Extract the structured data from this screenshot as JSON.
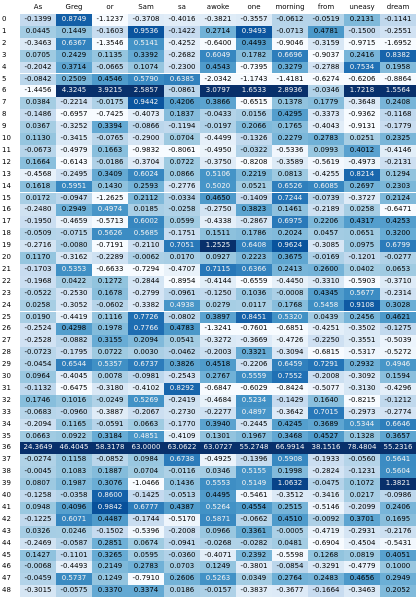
{
  "table": {
    "columns": [
      "As",
      "Greg",
      "or",
      "Sam",
      "sa",
      "awoke",
      "one",
      "morning",
      "from",
      "uneasy",
      "dream"
    ],
    "rows": [
      {
        "index": "0",
        "cells": [
          "-0.1399",
          "0.8749",
          "-1.1237",
          "-0.3708",
          "-0.4016",
          "-0.3821",
          "-0.3557",
          "-0.0612",
          "-0.0519",
          "0.2131",
          "-0.1141"
        ]
      },
      {
        "index": "1",
        "cells": [
          "0.0445",
          "0.1449",
          "-0.1603",
          "0.9536",
          "-0.1422",
          "0.2714",
          "0.9493",
          "-0.0713",
          "0.4781",
          "-0.1500",
          "-0.2551"
        ]
      },
      {
        "index": "2",
        "cells": [
          "-0.3463",
          "0.6367",
          "-1.3546",
          "0.5141",
          "-0.4252",
          "-0.6400",
          "0.4493",
          "-0.9046",
          "-0.3159",
          "-0.9715",
          "-1.6952"
        ]
      },
      {
        "index": "3",
        "cells": [
          "0.0705",
          "0.2429",
          "0.1135",
          "0.3392",
          "-0.2682",
          "0.6049",
          "0.1782",
          "0.6696",
          "-0.9037",
          "0.2416",
          "0.8382"
        ]
      },
      {
        "index": "4",
        "cells": [
          "-0.2042",
          "0.3714",
          "-0.0665",
          "0.1074",
          "-0.2300",
          "0.4543",
          "-0.7395",
          "0.3279",
          "-0.2788",
          "0.7534",
          "0.1958"
        ]
      },
      {
        "index": "5",
        "cells": [
          "-0.0842",
          "0.2509",
          "0.4546",
          "0.5790",
          "0.6385",
          "-2.0342",
          "-1.1743",
          "-1.4181",
          "-0.6274",
          "-0.6206",
          "-0.8864"
        ]
      },
      {
        "index": "6",
        "cells": [
          "-1.4456",
          "4.3245",
          "3.9215",
          "2.5857",
          "-0.0861",
          "3.0797",
          "1.6533",
          "2.8936",
          "-0.0346",
          "1.7218",
          "1.5564"
        ]
      },
      {
        "index": "7",
        "cells": [
          "0.0384",
          "-0.2214",
          "-0.0175",
          "0.9442",
          "0.4206",
          "0.3866",
          "-0.6515",
          "0.1378",
          "0.1779",
          "-0.3648",
          "0.2408"
        ]
      },
      {
        "index": "8",
        "cells": [
          "-0.1486",
          "-0.6957",
          "-0.7425",
          "-0.4073",
          "0.1837",
          "-0.0433",
          "0.0156",
          "0.4295",
          "-0.3373",
          "-0.9362",
          "-0.1168"
        ]
      },
      {
        "index": "9",
        "cells": [
          "0.0367",
          "-0.3252",
          "0.3394",
          "-0.0866",
          "-0.1194",
          "-0.0197",
          "0.2066",
          "0.1765",
          "-0.4043",
          "-0.9131",
          "-0.1779"
        ]
      },
      {
        "index": "10",
        "cells": [
          "0.1130",
          "-0.3415",
          "-0.0765",
          "-0.2900",
          "0.0704",
          "-0.4499",
          "-0.1326",
          "0.2279",
          "0.2783",
          "0.0251",
          "0.2325"
        ]
      },
      {
        "index": "11",
        "cells": [
          "-0.0673",
          "-0.4979",
          "0.1663",
          "-0.9832",
          "-0.8061",
          "-0.4950",
          "-0.0322",
          "-0.5336",
          "0.0993",
          "0.4012",
          "-0.4146"
        ]
      },
      {
        "index": "12",
        "cells": [
          "0.1664",
          "-0.6143",
          "-0.0186",
          "-0.3704",
          "0.0722",
          "-0.3750",
          "-0.8208",
          "-0.3589",
          "-0.5619",
          "-0.4973",
          "-0.2131"
        ]
      },
      {
        "index": "13",
        "cells": [
          "-0.4568",
          "-0.2495",
          "0.3409",
          "0.6024",
          "0.0866",
          "0.5106",
          "0.2219",
          "0.0813",
          "-0.4255",
          "0.8214",
          "0.1294"
        ]
      },
      {
        "index": "14",
        "cells": [
          "0.1618",
          "0.5951",
          "0.1430",
          "0.2593",
          "-0.2776",
          "0.5020",
          "0.0521",
          "0.6526",
          "0.6085",
          "0.2697",
          "0.2303"
        ]
      },
      {
        "index": "15",
        "cells": [
          "0.0172",
          "-0.0947",
          "-1.2625",
          "0.2112",
          "-0.0334",
          "0.4650",
          "-0.1409",
          "0.7244",
          "-0.0739",
          "-0.3727",
          "0.2124"
        ]
      },
      {
        "index": "16",
        "cells": [
          "-0.2480",
          "0.2949",
          "0.4974",
          "0.0185",
          "-0.0258",
          "-0.2750",
          "0.3823",
          "0.1461",
          "-0.2189",
          "0.0258",
          "-0.6471"
        ]
      },
      {
        "index": "17",
        "cells": [
          "-0.1950",
          "-0.4659",
          "-0.5713",
          "0.6002",
          "0.0599",
          "-0.4338",
          "-0.2867",
          "0.6975",
          "0.2206",
          "0.4317",
          "0.4253"
        ]
      },
      {
        "index": "18",
        "cells": [
          "-0.0509",
          "-0.0715",
          "0.5626",
          "0.5685",
          "-0.1751",
          "0.1511",
          "0.1786",
          "0.2024",
          "0.0457",
          "0.0651",
          "0.3200"
        ]
      },
      {
        "index": "19",
        "cells": [
          "-0.2716",
          "-0.0080",
          "-0.7191",
          "-0.2110",
          "0.7051",
          "1.2525",
          "0.6408",
          "0.9624",
          "-0.3085",
          "0.0975",
          "0.6799"
        ]
      },
      {
        "index": "20",
        "cells": [
          "0.1170",
          "-0.3162",
          "-0.2289",
          "-0.0062",
          "0.0170",
          "0.0927",
          "0.2223",
          "0.3675",
          "-0.0169",
          "-0.1201",
          "-0.0277"
        ]
      },
      {
        "index": "21",
        "cells": [
          "-0.1703",
          "0.5353",
          "-0.6633",
          "-0.7294",
          "-0.4707",
          "0.7115",
          "0.6366",
          "0.2413",
          "0.2600",
          "0.0402",
          "0.0653"
        ]
      },
      {
        "index": "22",
        "cells": [
          "-0.1968",
          "0.0422",
          "0.1272",
          "-0.2844",
          "-0.8954",
          "-0.4144",
          "-0.6559",
          "-0.4450",
          "-0.3310",
          "-0.5903",
          "-0.3710"
        ]
      },
      {
        "index": "23",
        "cells": [
          "-0.0522",
          "-0.2530",
          "0.1678",
          "-0.2799",
          "-0.0961",
          "-0.1250",
          "0.1036",
          "-0.0008",
          "0.4345",
          "0.5677",
          "-0.2314"
        ]
      },
      {
        "index": "24",
        "cells": [
          "0.0258",
          "-0.3052",
          "-0.0602",
          "-0.3382",
          "0.4938",
          "0.0279",
          "0.0117",
          "0.1768",
          "0.5458",
          "0.9108",
          "0.3028"
        ]
      },
      {
        "index": "25",
        "cells": [
          "0.0190",
          "-0.4419",
          "0.1116",
          "0.7726",
          "-0.0802",
          "0.3897",
          "0.8451",
          "0.5320",
          "0.0439",
          "0.2456",
          "0.4621"
        ]
      },
      {
        "index": "26",
        "cells": [
          "-0.2524",
          "0.4298",
          "0.1978",
          "0.7766",
          "0.4783",
          "-1.3241",
          "-0.7601",
          "-0.6851",
          "-0.4251",
          "-0.3502",
          "-0.1275"
        ]
      },
      {
        "index": "27",
        "cells": [
          "-0.2528",
          "-0.0882",
          "0.3155",
          "0.2094",
          "0.0541",
          "-0.3272",
          "-0.3669",
          "-0.4726",
          "-0.2250",
          "-0.3551",
          "-0.5039"
        ]
      },
      {
        "index": "28",
        "cells": [
          "-0.0723",
          "-0.1795",
          "0.0722",
          "0.0030",
          "-0.0462",
          "-0.2003",
          "0.3321",
          "-0.3094",
          "-0.6815",
          "-0.5317",
          "-0.5272"
        ]
      },
      {
        "index": "29",
        "cells": [
          "-0.0454",
          "0.6544",
          "0.5357",
          "0.6737",
          "0.3826",
          "0.4518",
          "-0.2206",
          "0.6459",
          "0.7291",
          "0.2932",
          "0.4946"
        ]
      },
      {
        "index": "30",
        "cells": [
          "0.0964",
          "-0.4045",
          "0.0078",
          "-0.0981",
          "-0.2543",
          "0.2767",
          "0.5559",
          "0.7552",
          "-0.2008",
          "-0.3092",
          "0.1594"
        ]
      },
      {
        "index": "31",
        "cells": [
          "-0.1132",
          "-0.6475",
          "-0.3180",
          "-0.4102",
          "0.8292",
          "-0.6847",
          "-0.6029",
          "-0.8424",
          "-0.5077",
          "-0.3130",
          "-0.4296"
        ]
      },
      {
        "index": "32",
        "cells": [
          "0.1746",
          "0.1016",
          "-0.0249",
          "0.5269",
          "-0.2419",
          "-0.4684",
          "0.5234",
          "-0.1429",
          "0.1640",
          "-0.8215",
          "-0.1212"
        ]
      },
      {
        "index": "33",
        "cells": [
          "-0.0683",
          "-0.0960",
          "-0.3887",
          "-0.2067",
          "-0.2730",
          "-0.2277",
          "0.4897",
          "-0.3642",
          "0.7015",
          "-0.2973",
          "-0.2774"
        ]
      },
      {
        "index": "34",
        "cells": [
          "-0.2094",
          "0.1165",
          "-0.0591",
          "0.0663",
          "-0.1770",
          "0.3940",
          "-0.2445",
          "0.4245",
          "0.3689",
          "0.5344",
          "0.6646"
        ]
      },
      {
        "index": "35",
        "cells": [
          "0.0663",
          "0.0922",
          "0.3184",
          "0.4851",
          "-0.4109",
          "0.1301",
          "0.1967",
          "0.3468",
          "0.4527",
          "0.1328",
          "0.3657"
        ]
      },
      {
        "index": "36",
        "cells": [
          "24.3649",
          "46.4045",
          "58.3178",
          "63.0000",
          "63.0622",
          "63.0727",
          "55.2748",
          "66.9914",
          "38.1516",
          "78.4804",
          "55.2316"
        ]
      },
      {
        "index": "37",
        "cells": [
          "-0.0274",
          "0.1158",
          "-0.0852",
          "0.0984",
          "0.6738",
          "-0.4925",
          "-0.1396",
          "0.5908",
          "-0.1933",
          "-0.0560",
          "0.5641"
        ]
      },
      {
        "index": "38",
        "cells": [
          "-0.0045",
          "0.1083",
          "0.1887",
          "0.0704",
          "-0.0116",
          "0.0346",
          "0.5155",
          "0.1998",
          "-0.2824",
          "-0.1231",
          "0.5604"
        ]
      },
      {
        "index": "39",
        "cells": [
          "0.0807",
          "0.1987",
          "0.3076",
          "-1.0466",
          "0.1436",
          "0.5553",
          "0.5149",
          "1.0632",
          "-0.0475",
          "0.1072",
          "1.3821"
        ]
      },
      {
        "index": "40",
        "cells": [
          "-0.1258",
          "-0.0358",
          "0.8600",
          "-0.1425",
          "-0.0513",
          "0.4495",
          "-0.5461",
          "-0.3512",
          "-0.3416",
          "0.0217",
          "-0.0986"
        ]
      },
      {
        "index": "41",
        "cells": [
          "0.0948",
          "0.4096",
          "0.9842",
          "0.6777",
          "0.4387",
          "0.5264",
          "0.4554",
          "0.2515",
          "-0.5146",
          "-0.2099",
          "0.2406"
        ]
      },
      {
        "index": "42",
        "cells": [
          "-0.1225",
          "0.6071",
          "0.4487",
          "-0.1744",
          "-0.5170",
          "0.5871",
          "-0.0662",
          "0.4510",
          "-0.0092",
          "0.3701",
          "0.1695"
        ]
      },
      {
        "index": "43",
        "cells": [
          "0.0326",
          "0.0246",
          "-0.1502",
          "-0.5396",
          "-0.2008",
          "0.0966",
          "0.3361",
          "-0.0005",
          "-0.4719",
          "-0.2931",
          "-0.2176"
        ]
      },
      {
        "index": "44",
        "cells": [
          "-0.2469",
          "-0.0587",
          "0.2851",
          "0.0674",
          "-0.0941",
          "-0.0268",
          "-0.0282",
          "0.0481",
          "-0.6904",
          "-0.4504",
          "-0.5431"
        ]
      },
      {
        "index": "45",
        "cells": [
          "0.1427",
          "-0.1101",
          "0.3265",
          "0.0595",
          "-0.0360",
          "-0.4071",
          "0.2392",
          "-0.5598",
          "0.1268",
          "0.0819",
          "0.4051"
        ]
      },
      {
        "index": "46",
        "cells": [
          "-0.0068",
          "-0.4493",
          "0.2149",
          "0.2783",
          "0.0703",
          "0.1249",
          "-0.3801",
          "-0.0854",
          "-0.3291",
          "-0.4779",
          "0.1000"
        ]
      },
      {
        "index": "47",
        "cells": [
          "-0.0459",
          "0.5737",
          "0.1249",
          "-0.7910",
          "0.2606",
          "0.5263",
          "0.0349",
          "0.2764",
          "0.2483",
          "0.4656",
          "0.2949"
        ]
      },
      {
        "index": "48",
        "cells": [
          "-0.3015",
          "-0.0575",
          "0.3370",
          "0.3374",
          "0.0186",
          "-0.0157",
          "-0.3837",
          "-0.3677",
          "-0.1664",
          "-0.3463",
          "0.2052"
        ]
      }
    ]
  }
}
